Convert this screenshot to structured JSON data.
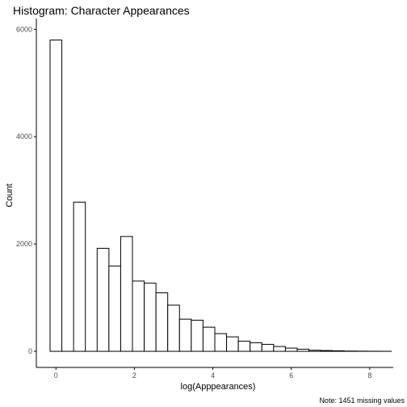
{
  "chart_data": {
    "type": "bar",
    "title": "Histogram: Character Appearances",
    "xlabel": "log(Apppearances)",
    "ylabel": "Count",
    "caption": "Note: 1451 missing values",
    "xlim": [
      -0.5,
      8.6
    ],
    "ylim": [
      -300,
      6200
    ],
    "x_ticks": [
      0,
      2,
      4,
      6,
      8
    ],
    "y_ticks": [
      0,
      2000,
      4000,
      6000
    ],
    "bin_width": 0.3,
    "grid": false,
    "bar_fill": "#ffffff",
    "bar_stroke": "#000000",
    "bins": [
      {
        "x": 0.0,
        "count": 5800
      },
      {
        "x": 0.3,
        "count": 0
      },
      {
        "x": 0.6,
        "count": 2780
      },
      {
        "x": 0.9,
        "count": 0
      },
      {
        "x": 1.2,
        "count": 1920
      },
      {
        "x": 1.5,
        "count": 1590
      },
      {
        "x": 1.8,
        "count": 2140
      },
      {
        "x": 2.1,
        "count": 1310
      },
      {
        "x": 2.4,
        "count": 1270
      },
      {
        "x": 2.7,
        "count": 1090
      },
      {
        "x": 3.0,
        "count": 860
      },
      {
        "x": 3.3,
        "count": 600
      },
      {
        "x": 3.6,
        "count": 580
      },
      {
        "x": 3.9,
        "count": 450
      },
      {
        "x": 4.2,
        "count": 330
      },
      {
        "x": 4.5,
        "count": 270
      },
      {
        "x": 4.8,
        "count": 190
      },
      {
        "x": 5.1,
        "count": 160
      },
      {
        "x": 5.4,
        "count": 130
      },
      {
        "x": 5.7,
        "count": 90
      },
      {
        "x": 6.0,
        "count": 60
      },
      {
        "x": 6.3,
        "count": 40
      },
      {
        "x": 6.6,
        "count": 20
      },
      {
        "x": 6.9,
        "count": 15
      },
      {
        "x": 7.2,
        "count": 10
      },
      {
        "x": 7.5,
        "count": 5
      },
      {
        "x": 7.8,
        "count": 3
      },
      {
        "x": 8.1,
        "count": 2
      },
      {
        "x": 8.4,
        "count": 1
      }
    ]
  }
}
